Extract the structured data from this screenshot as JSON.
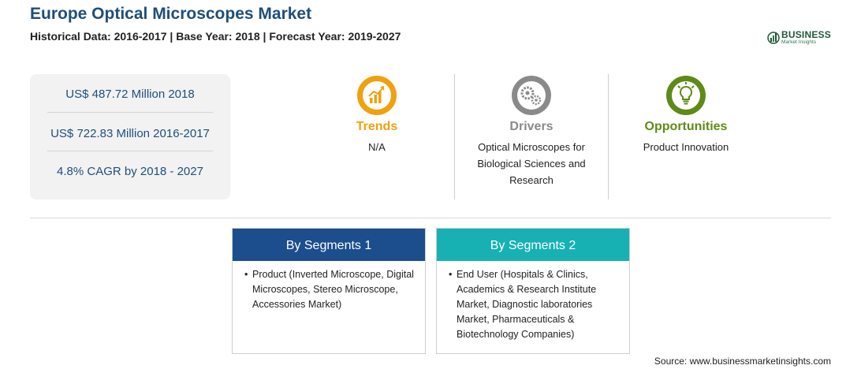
{
  "header": {
    "title": "Europe Optical Microscopes Market",
    "subtitle": "Historical Data: 2016-2017 | Base Year: 2018 | Forecast Year: 2019-2027"
  },
  "logo": {
    "name": "BUSINESS",
    "tagline": "Market Insights",
    "icon": "bar-chart-logo-icon"
  },
  "stats": [
    "US$ 487.72 Million 2018",
    "US$ 722.83 Million 2016-2017",
    "4.8% CAGR by 2018 - 2027"
  ],
  "columns": {
    "trends": {
      "heading": "Trends",
      "text": "N/A",
      "icon": "trend-chart-icon",
      "color": "#f0a10f"
    },
    "drivers": {
      "heading": "Drivers",
      "text": "Optical Microscopes for Biological Sciences and Research",
      "icon": "gears-icon",
      "color": "#8a8a8a"
    },
    "opportunities": {
      "heading": "Opportunities",
      "text": "Product Innovation",
      "icon": "lightbulb-icon",
      "color": "#5f8a17"
    }
  },
  "segments": [
    {
      "heading": "By Segments 1",
      "bullet": "•",
      "text": "Product (Inverted Microscope, Digital Microscopes, Stereo Microscope, Accessories Market)",
      "color": "#1c4d8c"
    },
    {
      "heading": "By Segments 2",
      "bullet": "•",
      "text": "End User (Hospitals & Clinics, Academics & Research Institute Market, Diagnostic laboratories Market, Pharmaceuticals & Biotechnology Companies)",
      "color": "#17b1b4"
    }
  ],
  "source": "Source: www.businessmarketinsights.com"
}
